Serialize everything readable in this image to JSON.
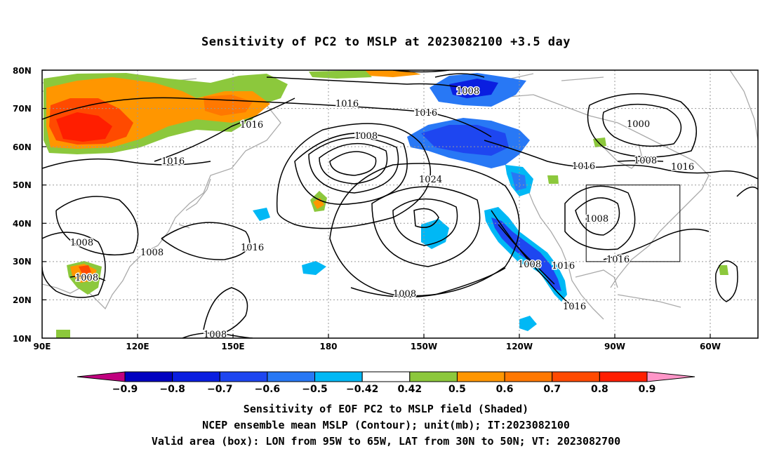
{
  "title": "Sensitivity of PC2 to MSLP at 2023082100 +3.5 day",
  "lat_labels": [
    "80N",
    "70N",
    "60N",
    "50N",
    "40N",
    "30N",
    "20N",
    "10N"
  ],
  "lon_labels": [
    "90E",
    "120E",
    "150E",
    "180",
    "150W",
    "120W",
    "90W",
    "60W"
  ],
  "colorbar": {
    "labels": [
      "-0.9",
      "-0.8",
      "-0.7",
      "-0.6",
      "-0.5",
      "-0.42",
      "0.42",
      "0.5",
      "0.6",
      "0.7",
      "0.8",
      "0.9"
    ],
    "colors": [
      "#c0007f",
      "#0000c0",
      "#0a1ee0",
      "#1e46f0",
      "#2878f5",
      "#00b8f5",
      "#ffffff",
      "#8cc83c",
      "#ff9600",
      "#ff7800",
      "#ff4a00",
      "#ff1e00",
      "#ff96c8"
    ]
  },
  "contours": {
    "labels": [
      "1008",
      "1016",
      "1016",
      "1008",
      "1016",
      "1024",
      "1008",
      "1016",
      "1008",
      "1000",
      "1008",
      "1016",
      "1016",
      "1016",
      "1008",
      "1016",
      "1008",
      "1008",
      "1008",
      "1008",
      "1016",
      "1016"
    ]
  },
  "valid_box": {
    "lon_range": [
      "95W",
      "65W"
    ],
    "lat_range": [
      "30N",
      "50N"
    ]
  },
  "captions": [
    "Sensitivity of EOF PC2 to MSLP field (Shaded)",
    "NCEP ensemble mean MSLP (Contour); unit(mb); IT:2023082100",
    "Valid area (box): LON from 95W to 65W, LAT from 30N to 50N; VT: 2023082700"
  ]
}
